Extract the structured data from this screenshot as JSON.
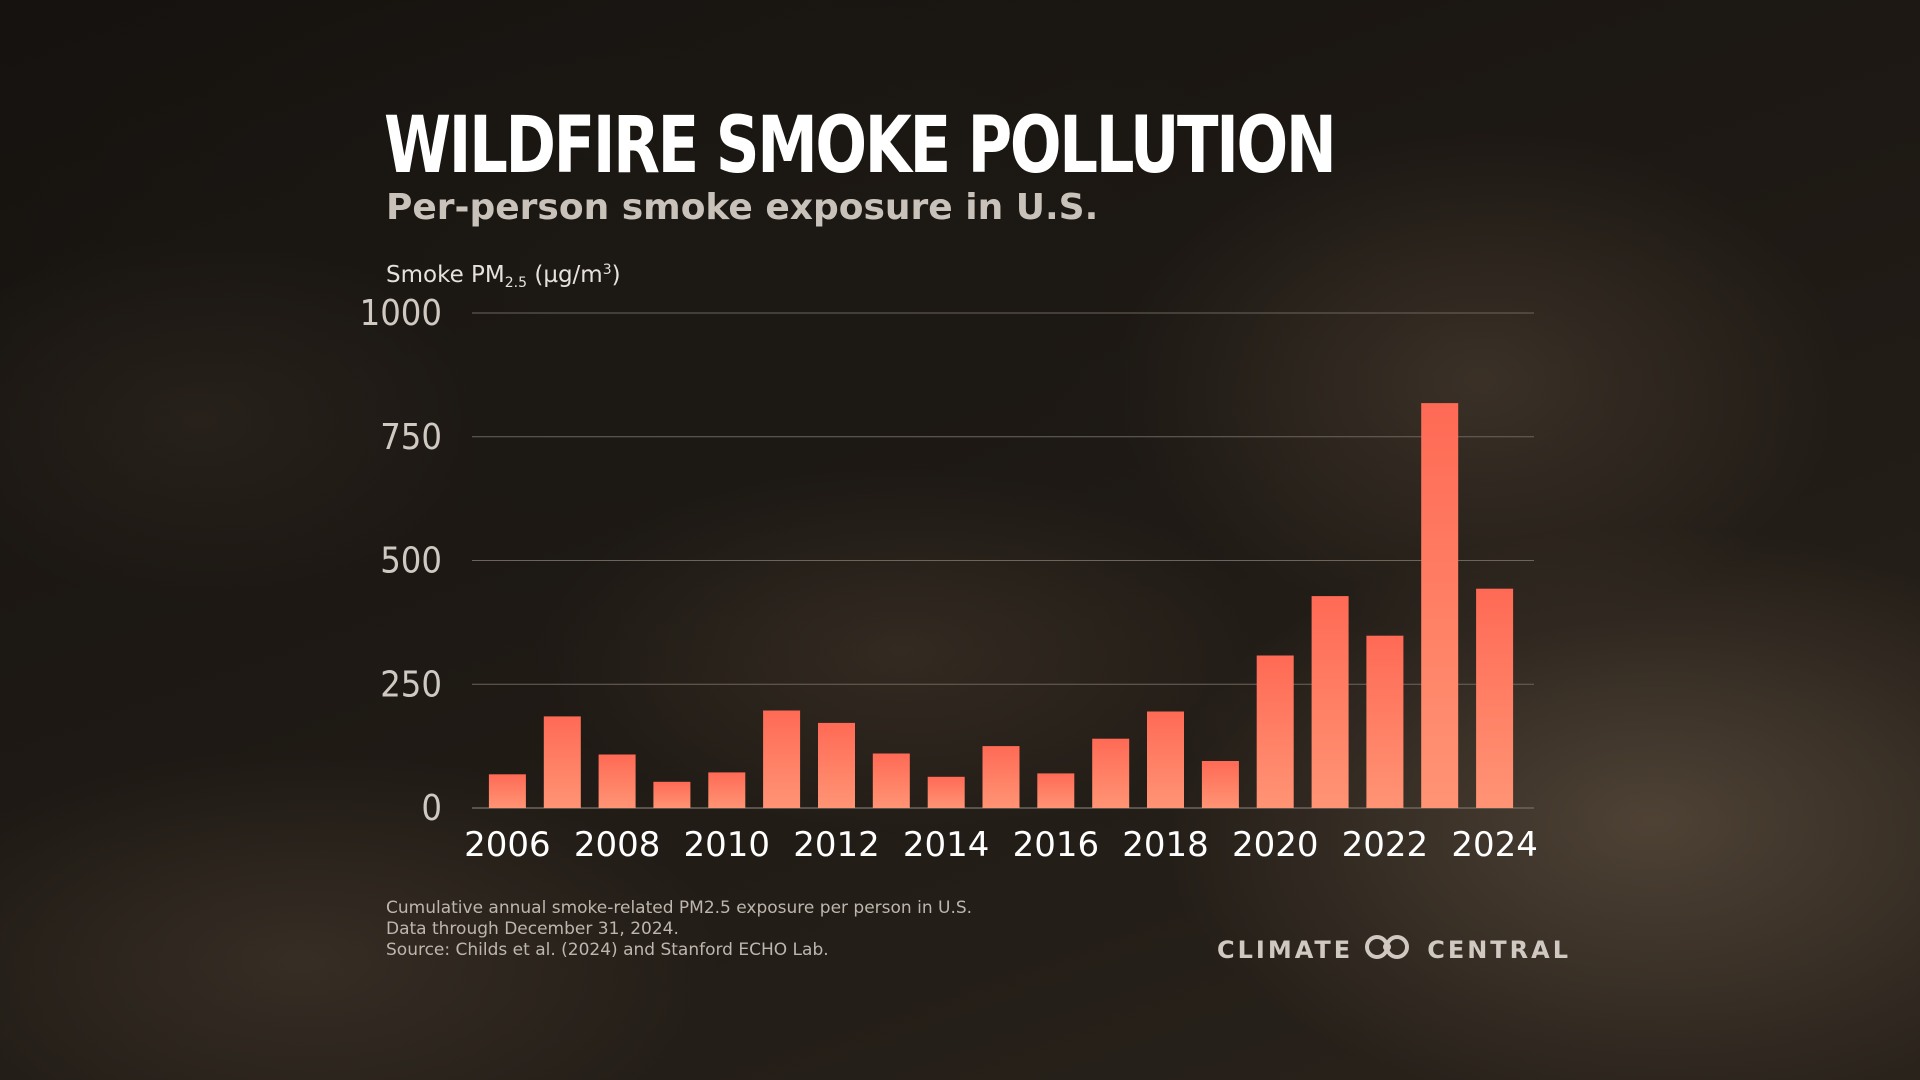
{
  "title": "WILDFIRE SMOKE POLLUTION",
  "subtitle": "Per-person smoke exposure in U.S.",
  "ylabel": {
    "text": "Smoke PM",
    "sub": "2.5",
    "unit_open": " (µg/m",
    "sup": "3",
    "unit_close": ")"
  },
  "notes": [
    "Cumulative annual smoke-related PM2.5 exposure per person in U.S.",
    "Data through December 31, 2024.",
    "Source: Childs et al. (2024) and Stanford ECHO Lab."
  ],
  "brand": {
    "left": "CLIMATE",
    "right": "CENTRAL",
    "logo_icon": "climate-central-logo-icon"
  },
  "colors": {
    "bar_top": "#ff6a55",
    "bar_bottom": "#ff9474",
    "grid": "#6d655d"
  },
  "chart_data": {
    "type": "bar",
    "categories": [
      "2006",
      "2007",
      "2008",
      "2009",
      "2010",
      "2011",
      "2012",
      "2013",
      "2014",
      "2015",
      "2016",
      "2017",
      "2018",
      "2019",
      "2020",
      "2021",
      "2022",
      "2023",
      "2024"
    ],
    "values": [
      68,
      185,
      108,
      53,
      72,
      197,
      172,
      110,
      63,
      125,
      70,
      140,
      195,
      95,
      308,
      428,
      348,
      818,
      443
    ],
    "xtick_labels": [
      "2006",
      "2008",
      "2010",
      "2012",
      "2014",
      "2016",
      "2018",
      "2020",
      "2022",
      "2024"
    ],
    "yticks": [
      0,
      250,
      500,
      750,
      1000
    ],
    "ylim": [
      0,
      1000
    ],
    "grid": true,
    "legend": "none"
  }
}
